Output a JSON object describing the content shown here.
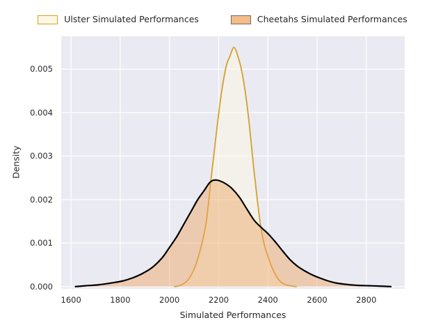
{
  "figure": {
    "background": "#ffffff",
    "plot_background": "#eaeaf2",
    "grid_color": "#ffffff",
    "text_color": "#262626"
  },
  "legend": {
    "items": [
      {
        "label": "Ulster Simulated Performances",
        "fill": "#fdf7e3",
        "edge": "#d4a029"
      },
      {
        "label": "Cheetahs Simulated Performances",
        "fill": "#f3bc88",
        "edge": "#6f6b66"
      }
    ]
  },
  "chart_data": {
    "type": "area",
    "subtype": "kde-density",
    "title": "",
    "xlabel": "Simulated Performances",
    "ylabel": "Density",
    "xlim": [
      1560,
      2956
    ],
    "ylim": [
      -5e-05,
      0.005758
    ],
    "grid": true,
    "legend_position": "top-center",
    "x_ticks": [
      {
        "v": 1600,
        "label": "1600"
      },
      {
        "v": 1800,
        "label": "1800"
      },
      {
        "v": 2000,
        "label": "2000"
      },
      {
        "v": 2200,
        "label": "2200"
      },
      {
        "v": 2400,
        "label": "2400"
      },
      {
        "v": 2600,
        "label": "2600"
      },
      {
        "v": 2800,
        "label": "2800"
      }
    ],
    "y_ticks": [
      {
        "v": 0.0,
        "label": "0.000"
      },
      {
        "v": 0.001,
        "label": "0.001"
      },
      {
        "v": 0.002,
        "label": "0.002"
      },
      {
        "v": 0.003,
        "label": "0.003"
      },
      {
        "v": 0.004,
        "label": "0.004"
      },
      {
        "v": 0.005,
        "label": "0.005"
      }
    ],
    "series": [
      {
        "name": "Ulster Simulated Performances",
        "line_color": "#d4a029",
        "line_width": 1.8,
        "fill_color": "rgba(255,250,225,0.45)",
        "peak": {
          "x": 2262,
          "density": 0.0055
        },
        "points": [
          [
            2020,
            0
          ],
          [
            2045,
            3e-05
          ],
          [
            2070,
            0.00012
          ],
          [
            2090,
            0.00028
          ],
          [
            2110,
            0.00055
          ],
          [
            2130,
            0.00095
          ],
          [
            2150,
            0.0015
          ],
          [
            2170,
            0.00252
          ],
          [
            2190,
            0.0035
          ],
          [
            2210,
            0.0044
          ],
          [
            2230,
            0.00505
          ],
          [
            2246,
            0.0053
          ],
          [
            2262,
            0.0055
          ],
          [
            2278,
            0.0053
          ],
          [
            2294,
            0.00495
          ],
          [
            2310,
            0.0044
          ],
          [
            2326,
            0.00365
          ],
          [
            2342,
            0.00275
          ],
          [
            2358,
            0.00195
          ],
          [
            2372,
            0.00135
          ],
          [
            2386,
            0.00095
          ],
          [
            2400,
            0.0007
          ],
          [
            2416,
            0.00045
          ],
          [
            2432,
            0.00026
          ],
          [
            2450,
            0.00012
          ],
          [
            2470,
            5e-05
          ],
          [
            2490,
            2e-05
          ],
          [
            2515,
            0
          ]
        ]
      },
      {
        "name": "Cheetahs Simulated Performances",
        "line_color": "#000000",
        "line_width": 2.2,
        "fill_color": "rgba(240,163,96,0.45)",
        "peak": {
          "x": 2185,
          "density": 0.00245
        },
        "points": [
          [
            1618,
            0
          ],
          [
            1660,
            2e-05
          ],
          [
            1710,
            4e-05
          ],
          [
            1760,
            8e-05
          ],
          [
            1810,
            0.00013
          ],
          [
            1850,
            0.0002
          ],
          [
            1890,
            0.0003
          ],
          [
            1930,
            0.00044
          ],
          [
            1970,
            0.00066
          ],
          [
            2000,
            0.0009
          ],
          [
            2030,
            0.00115
          ],
          [
            2060,
            0.00145
          ],
          [
            2090,
            0.00175
          ],
          [
            2115,
            0.002
          ],
          [
            2140,
            0.0022
          ],
          [
            2165,
            0.0024
          ],
          [
            2185,
            0.00245
          ],
          [
            2205,
            0.00243
          ],
          [
            2230,
            0.00236
          ],
          [
            2255,
            0.00225
          ],
          [
            2285,
            0.00205
          ],
          [
            2315,
            0.00178
          ],
          [
            2345,
            0.00152
          ],
          [
            2375,
            0.00135
          ],
          [
            2400,
            0.00122
          ],
          [
            2430,
            0.00103
          ],
          [
            2460,
            0.00082
          ],
          [
            2490,
            0.00062
          ],
          [
            2520,
            0.00047
          ],
          [
            2550,
            0.00036
          ],
          [
            2580,
            0.00027
          ],
          [
            2610,
            0.0002
          ],
          [
            2645,
            0.00013
          ],
          [
            2680,
            8e-05
          ],
          [
            2720,
            5e-05
          ],
          [
            2760,
            3e-05
          ],
          [
            2810,
            2e-05
          ],
          [
            2860,
            1e-05
          ],
          [
            2900,
            0
          ]
        ]
      }
    ]
  }
}
